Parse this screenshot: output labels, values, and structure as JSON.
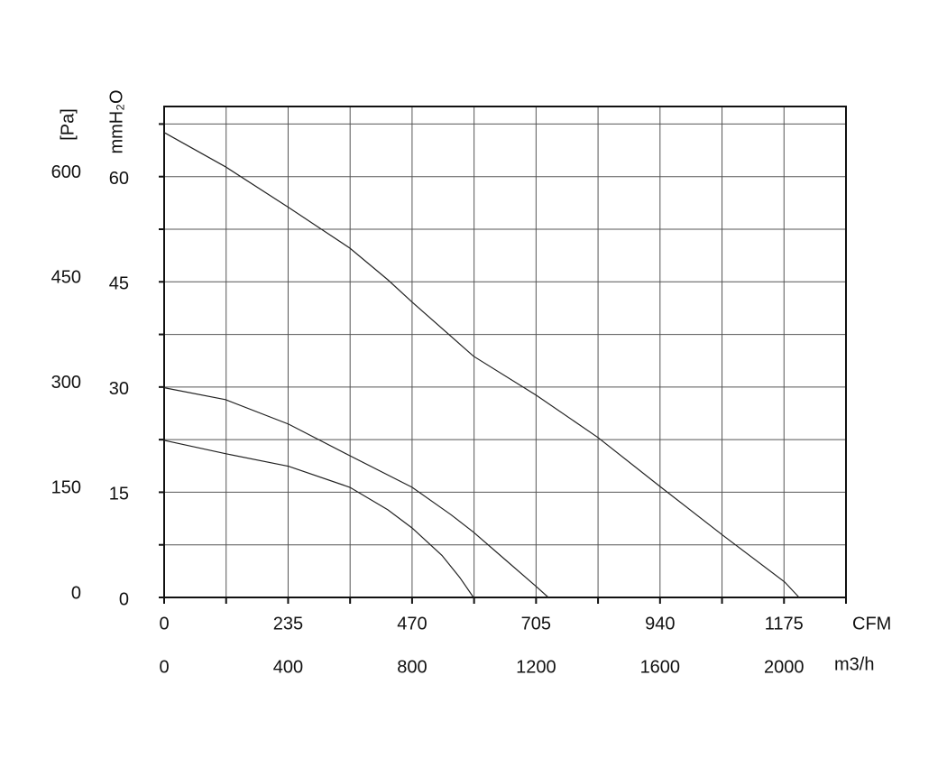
{
  "chart_data": {
    "type": "line",
    "y_label": "mmH₂O",
    "y2_label": "[Pa]",
    "x_label": "CFM",
    "x2_label": "m3/h",
    "xlim": [
      0,
      1292.5
    ],
    "xticks": [
      0,
      235,
      470,
      705,
      940,
      1175
    ],
    "xminor_ticks": [
      117.5,
      352.5,
      587.5,
      822.5,
      1057.5,
      1292.5
    ],
    "x2lim": [
      0,
      2200
    ],
    "x2ticks": [
      0,
      400,
      800,
      1200,
      1600,
      2000
    ],
    "ylim": [
      0,
      70
    ],
    "yticks": [
      0,
      15,
      30,
      45,
      60
    ],
    "yminor_ticks": [
      7.5,
      22.5,
      37.5,
      52.5,
      67.5
    ],
    "y2lim": [
      0,
      700
    ],
    "y2ticks": [
      0,
      150,
      300,
      450,
      600
    ],
    "grid": true,
    "series": [
      {
        "color": "#222222",
        "x": [
          0,
          116.3,
          235.9,
          352.2,
          424,
          470.2,
          586.4,
          706.1,
          822.3,
          942,
          1058.3,
          1176.3,
          1203.6
        ],
        "values": [
          66.3,
          61.4,
          55.6,
          49.8,
          45.3,
          42.1,
          34.4,
          28.8,
          22.8,
          15.7,
          8.9,
          2.2,
          0
        ]
      },
      {
        "color": "#222222",
        "x": [
          0,
          116.3,
          235.9,
          352.2,
          470.2,
          543.7,
          586.4,
          646.2,
          706.1,
          728.3
        ],
        "values": [
          29.9,
          28.2,
          24.7,
          20.2,
          15.7,
          11.8,
          9.3,
          5.4,
          1.5,
          0
        ]
      },
      {
        "color": "#222222",
        "x": [
          0,
          116.3,
          235.9,
          352.2,
          424,
          470.2,
          526.6,
          560.8,
          586.4
        ],
        "values": [
          22.4,
          20.5,
          18.7,
          15.7,
          12.5,
          9.9,
          6,
          2.8,
          0
        ]
      }
    ]
  }
}
